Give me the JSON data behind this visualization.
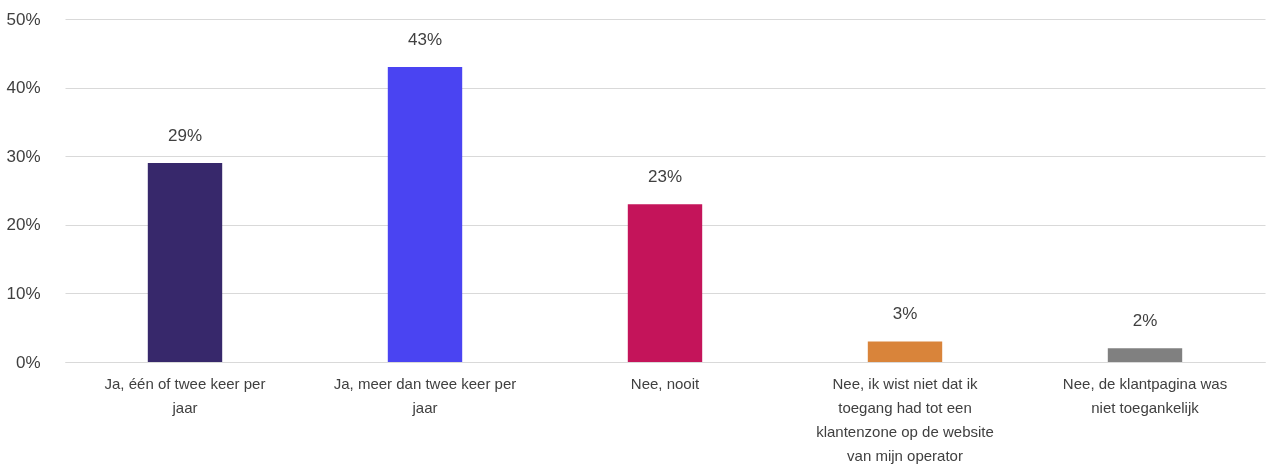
{
  "chart_data": {
    "type": "bar",
    "categories": [
      "Ja, één of twee keer per jaar",
      "Ja, meer dan twee keer per jaar",
      "Nee, nooit",
      "Nee, ik wist niet dat ik toegang had tot een klantenzone op de website van mijn operator",
      "Nee, de klantpagina was niet toegankelijk"
    ],
    "values": [
      29,
      43,
      23,
      3,
      2
    ],
    "colors": [
      "#37286b",
      "#4a44f2",
      "#c4145a",
      "#d9843a",
      "#808080"
    ],
    "value_labels": [
      "29%",
      "43%",
      "23%",
      "3%",
      "2%"
    ],
    "ylim": [
      0,
      50
    ],
    "yticks": [
      {
        "value": 0,
        "label": "0%"
      },
      {
        "value": 10,
        "label": "10%"
      },
      {
        "value": 20,
        "label": "20%"
      },
      {
        "value": 30,
        "label": "30%"
      },
      {
        "value": 40,
        "label": "40%"
      },
      {
        "value": 50,
        "label": "50%"
      }
    ],
    "grid": "y"
  }
}
